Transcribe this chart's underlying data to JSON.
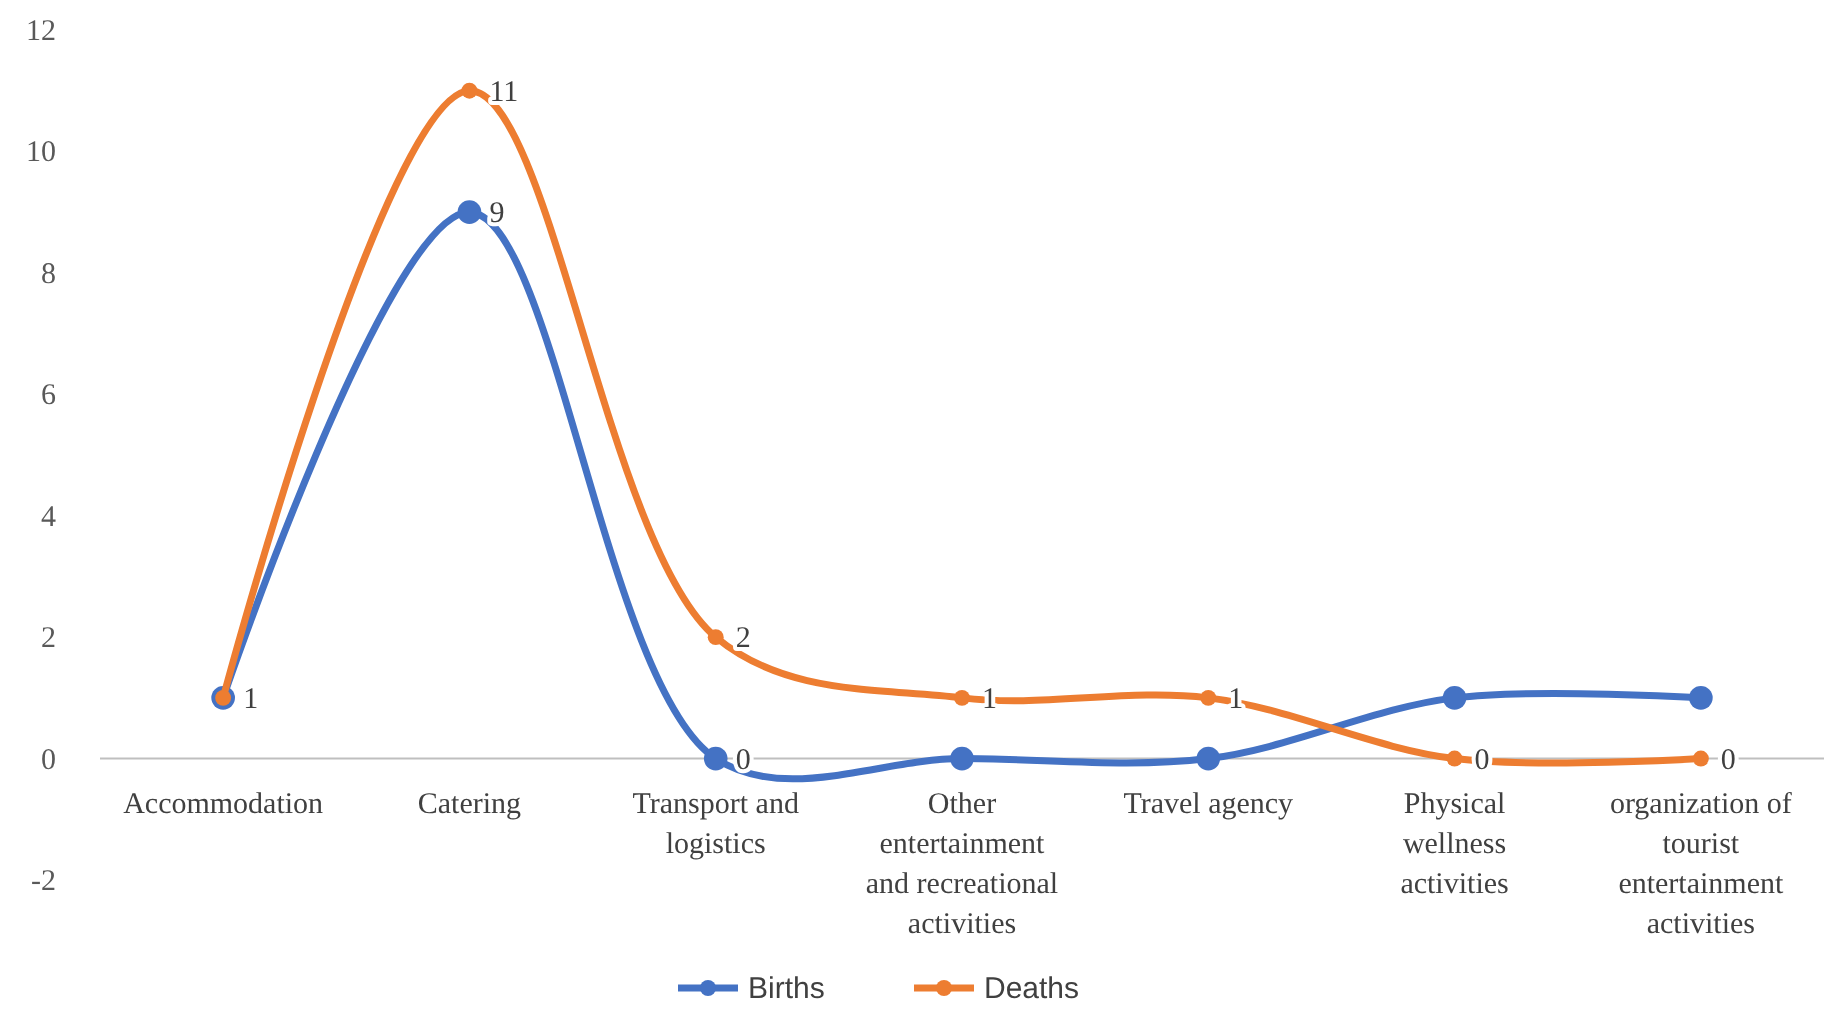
{
  "chart_data": {
    "type": "line",
    "categories": [
      "Accommodation",
      "Catering",
      "Transport and logistics",
      "Other entertainment and recreational activities",
      "Travel agency",
      "Physical wellness activities",
      "organization of tourist entertainment activities"
    ],
    "series": [
      {
        "name": "Births",
        "color": "#4472c4",
        "values": [
          1,
          9,
          0,
          0,
          0,
          1,
          1
        ],
        "value_labels": [
          null,
          "9",
          "0",
          null,
          null,
          null,
          null
        ]
      },
      {
        "name": "Deaths",
        "color": "#ed7d31",
        "values": [
          1,
          11,
          2,
          1,
          1,
          0,
          0
        ],
        "value_labels": [
          "1",
          "11",
          "2",
          "1",
          "1",
          "0",
          "0"
        ]
      }
    ],
    "ylim": [
      -2,
      12
    ],
    "yticks": [
      -2,
      0,
      2,
      4,
      6,
      8,
      10,
      12
    ],
    "grid": false,
    "legend": "bottom",
    "marker": "circle",
    "line_style": "solid"
  }
}
